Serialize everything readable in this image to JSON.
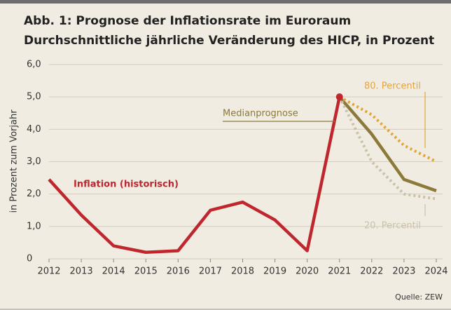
{
  "chart_data": {
    "type": "line",
    "title": "Abb. 1: Prognose der Inflationsrate im Euroraum",
    "subtitle": "Durchschnittliche jährliche Veränderung des HICP, in Prozent",
    "y_label": "in Prozent zum Vorjahr",
    "source": "Quelle: ZEW",
    "x": [
      2012,
      2013,
      2014,
      2015,
      2016,
      2017,
      2018,
      2019,
      2020,
      2021,
      2022,
      2023,
      2024
    ],
    "xlim": [
      2012,
      2024
    ],
    "xticks": [
      2012,
      2013,
      2014,
      2015,
      2016,
      2017,
      2018,
      2019,
      2020,
      2021,
      2022,
      2023,
      2024
    ],
    "ylim": [
      0,
      6
    ],
    "yticks": [
      0,
      {
        "value": 1,
        "label": "1,0"
      },
      {
        "value": 2,
        "label": "2,0"
      },
      {
        "value": 3,
        "label": "3,0"
      },
      {
        "value": 4,
        "label": "4,0"
      },
      {
        "value": 5,
        "label": "5,0"
      },
      {
        "value": 6,
        "label": "6,0"
      }
    ],
    "grid": true,
    "series": [
      {
        "name": "Inflation (historisch)",
        "color": "#c0262d",
        "style": "solid",
        "values": [
          2.45,
          1.35,
          0.4,
          0.2,
          0.25,
          1.5,
          1.75,
          1.2,
          0.25,
          5.0,
          null,
          null,
          null
        ]
      },
      {
        "name": "Medianprognose",
        "color": "#8b7a3a",
        "style": "solid",
        "values": [
          null,
          null,
          null,
          null,
          null,
          null,
          null,
          null,
          null,
          5.0,
          3.85,
          2.45,
          2.1
        ]
      },
      {
        "name": "80. Percentil",
        "color": "#e3a53a",
        "style": "dotted",
        "values": [
          null,
          null,
          null,
          null,
          null,
          null,
          null,
          null,
          null,
          5.0,
          4.45,
          3.5,
          3.0
        ]
      },
      {
        "name": "20. Percentil",
        "color": "#c9c1a9",
        "style": "dotted",
        "values": [
          null,
          null,
          null,
          null,
          null,
          null,
          null,
          null,
          null,
          5.0,
          3.0,
          2.0,
          1.85
        ]
      }
    ]
  }
}
